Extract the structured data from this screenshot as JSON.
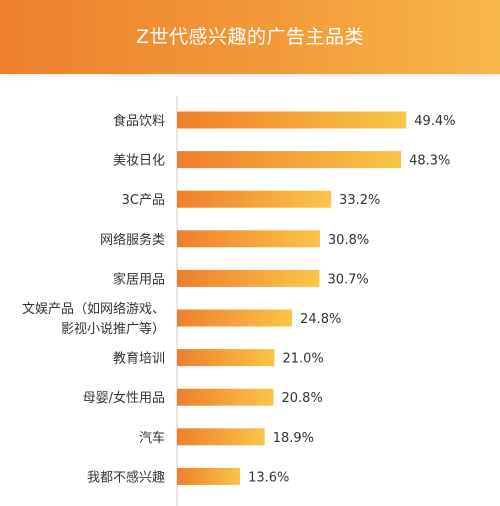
{
  "header": {
    "title": "Z世代感兴趣的广告主品类"
  },
  "colors": {
    "header_start": "#ee7f2c",
    "header_end": "#f7b84a",
    "bar_start": "#ef7f2b",
    "bar_end": "#f9c548",
    "axis": "#cccccc"
  },
  "chart_data": {
    "type": "bar",
    "orientation": "horizontal",
    "title": "Z世代感兴趣的广告主品类",
    "categories": [
      [
        "食品饮料"
      ],
      [
        "美妆日化"
      ],
      [
        "3C产品"
      ],
      [
        "网络服务类"
      ],
      [
        "家居用品"
      ],
      [
        "文娱产品（如网络游戏、",
        "影视小说推广等）"
      ],
      [
        "教育培训"
      ],
      [
        "母婴/女性用品"
      ],
      [
        "汽车"
      ],
      [
        "我都不感兴趣"
      ]
    ],
    "values": [
      49.4,
      48.3,
      33.2,
      30.8,
      30.7,
      24.8,
      21.0,
      20.8,
      18.9,
      13.6
    ],
    "value_labels": [
      "49.4%",
      "48.3%",
      "33.2%",
      "30.8%",
      "30.7%",
      "24.8%",
      "21.0%",
      "20.8%",
      "18.9%",
      "13.6%"
    ],
    "xlim": [
      0,
      50
    ],
    "grid": false,
    "legend": "none"
  }
}
